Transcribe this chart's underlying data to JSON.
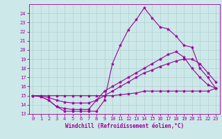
{
  "title": "",
  "xlabel": "Windchill (Refroidissement éolien,°C)",
  "ylabel": "",
  "bg_color": "#cce8e8",
  "line_color": "#990099",
  "grid_color": "#aacccc",
  "xlim": [
    -0.5,
    23.5
  ],
  "ylim": [
    13,
    25
  ],
  "yticks": [
    13,
    14,
    15,
    16,
    17,
    18,
    19,
    20,
    21,
    22,
    23,
    24
  ],
  "xticks": [
    0,
    1,
    2,
    3,
    4,
    5,
    6,
    7,
    8,
    9,
    10,
    11,
    12,
    13,
    14,
    15,
    16,
    17,
    18,
    19,
    20,
    21,
    22,
    23
  ],
  "line1_x": [
    0,
    1,
    2,
    3,
    4,
    5,
    6,
    7,
    8,
    9,
    10,
    11,
    12,
    13,
    14,
    15,
    16,
    17,
    18,
    19,
    20,
    21,
    22,
    23
  ],
  "line1_y": [
    15.0,
    14.9,
    14.5,
    13.8,
    13.3,
    13.3,
    13.3,
    13.3,
    13.3,
    14.5,
    18.5,
    20.5,
    22.2,
    23.3,
    24.6,
    23.5,
    22.5,
    22.3,
    21.5,
    20.5,
    20.3,
    18.0,
    17.0,
    15.8
  ],
  "line2_x": [
    0,
    1,
    2,
    3,
    4,
    5,
    6,
    7,
    8,
    9,
    10,
    11,
    12,
    13,
    14,
    15,
    16,
    17,
    18,
    19,
    20,
    21,
    22,
    23
  ],
  "line2_y": [
    15.0,
    14.9,
    14.5,
    13.8,
    13.6,
    13.5,
    13.5,
    13.5,
    14.5,
    15.5,
    16.0,
    16.5,
    17.0,
    17.5,
    18.0,
    18.5,
    19.0,
    19.5,
    19.8,
    19.2,
    18.0,
    17.0,
    16.2,
    15.8
  ],
  "line3_x": [
    0,
    1,
    2,
    3,
    4,
    5,
    6,
    7,
    8,
    9,
    10,
    11,
    12,
    13,
    14,
    15,
    16,
    17,
    18,
    19,
    20,
    21,
    22,
    23
  ],
  "line3_y": [
    15.0,
    15.0,
    14.8,
    14.5,
    14.3,
    14.2,
    14.2,
    14.2,
    14.5,
    15.0,
    15.5,
    16.0,
    16.5,
    17.0,
    17.5,
    17.8,
    18.2,
    18.5,
    18.8,
    19.0,
    19.0,
    18.5,
    17.5,
    16.5
  ],
  "line4_x": [
    0,
    1,
    2,
    3,
    4,
    5,
    6,
    7,
    8,
    9,
    10,
    11,
    12,
    13,
    14,
    15,
    16,
    17,
    18,
    19,
    20,
    21,
    22,
    23
  ],
  "line4_y": [
    15.0,
    15.0,
    15.0,
    15.0,
    15.0,
    15.0,
    15.0,
    15.0,
    15.0,
    15.0,
    15.0,
    15.1,
    15.2,
    15.3,
    15.5,
    15.5,
    15.5,
    15.5,
    15.5,
    15.5,
    15.5,
    15.5,
    15.5,
    15.8
  ],
  "tick_fontsize": 5,
  "xlabel_fontsize": 5.5,
  "marker_size": 3,
  "linewidth": 0.8
}
